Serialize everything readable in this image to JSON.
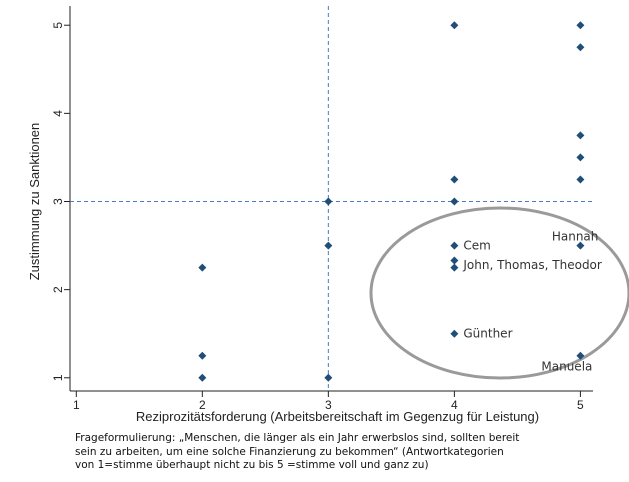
{
  "chart_data": {
    "type": "scatter",
    "xlabel": "Reziprozitätsforderung (Arbeitsbereitschaft im Gegenzug für Leistung)",
    "ylabel": "Zustimmung zu Sanktionen",
    "xlim": [
      0.95,
      5.1
    ],
    "ylim": [
      0.85,
      5.15
    ],
    "x_ticks": [
      "1",
      "2",
      "3",
      "4",
      "5"
    ],
    "y_ticks": [
      "1",
      "2",
      "3",
      "4",
      "5"
    ],
    "reference_lines": {
      "x": 3,
      "y": 3
    },
    "marker_color": "#1f4e79",
    "points": [
      {
        "x": 2,
        "y": 2.25
      },
      {
        "x": 2,
        "y": 1.25
      },
      {
        "x": 2,
        "y": 1.0
      },
      {
        "x": 3,
        "y": 3.0
      },
      {
        "x": 3,
        "y": 2.5
      },
      {
        "x": 3,
        "y": 1.0
      },
      {
        "x": 4,
        "y": 5.0
      },
      {
        "x": 4,
        "y": 3.25
      },
      {
        "x": 4,
        "y": 3.0
      },
      {
        "x": 4,
        "y": 2.5
      },
      {
        "x": 4,
        "y": 2.33
      },
      {
        "x": 4,
        "y": 2.25
      },
      {
        "x": 4,
        "y": 1.5
      },
      {
        "x": 5,
        "y": 5.0
      },
      {
        "x": 5,
        "y": 4.75
      },
      {
        "x": 5,
        "y": 3.75
      },
      {
        "x": 5,
        "y": 3.5
      },
      {
        "x": 5,
        "y": 3.25
      },
      {
        "x": 5,
        "y": 2.5
      },
      {
        "x": 5,
        "y": 1.25
      }
    ],
    "annotations": [
      {
        "text": "Cem",
        "x": 4,
        "y": 2.5,
        "anchor": "right"
      },
      {
        "text": "John, Thomas, Theodor",
        "x": 4,
        "y": 2.28,
        "anchor": "right"
      },
      {
        "text": "Günther",
        "x": 4,
        "y": 1.5,
        "anchor": "right"
      },
      {
        "text": "Hannah",
        "x": 5,
        "y": 2.5,
        "anchor": "above-left"
      },
      {
        "text": "Manuela",
        "x": 5,
        "y": 1.25,
        "anchor": "below-left"
      }
    ],
    "highlight_ellipse_color": "#9a9a9a"
  },
  "caption": {
    "lines": [
      "Frageformulierung: „Menschen, die länger als ein Jahr erwerbslos sind, sollten bereit",
      "sein zu arbeiten, um eine solche Finanzierung zu bekommen“ (Antwortkategorien",
      "von 1=stimme überhaupt nicht zu bis 5 =stimme voll und ganz zu)"
    ]
  }
}
